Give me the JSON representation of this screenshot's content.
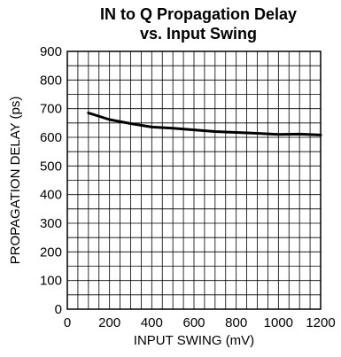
{
  "chart_data": {
    "type": "line",
    "title_line1": "IN to Q Propagation Delay",
    "title_line2": "vs. Input Swing",
    "xlabel": "INPUT SWING (mV)",
    "ylabel": "PROPAGATION DELAY (ps)",
    "xlim": [
      0,
      1200
    ],
    "ylim": [
      0,
      900
    ],
    "x_ticks": [
      0,
      200,
      400,
      600,
      800,
      1000,
      1200
    ],
    "y_ticks": [
      0,
      100,
      200,
      300,
      400,
      500,
      600,
      700,
      800,
      900
    ],
    "grid": true,
    "x_minor_step": 50,
    "y_minor_step": 50,
    "series": [
      {
        "x": [
          100,
          200,
          300,
          400,
          500,
          600,
          700,
          800,
          900,
          1000,
          1100,
          1200
        ],
        "y": [
          685,
          662,
          648,
          636,
          632,
          626,
          620,
          617,
          614,
          610,
          611,
          608
        ],
        "color": "#000000"
      }
    ]
  }
}
